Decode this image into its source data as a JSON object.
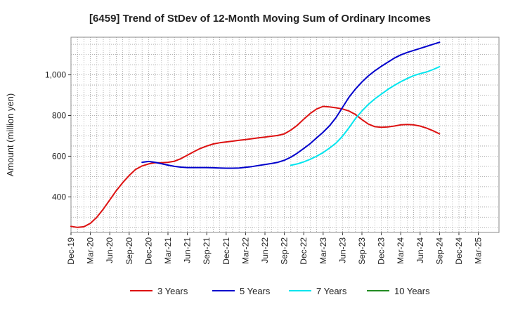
{
  "chart_data": {
    "type": "line",
    "title": "[6459]  Trend of StDev of 12-Month Moving Sum of Ordinary Incomes",
    "ylabel": "Amount (million yen)",
    "xlabel": "",
    "x_ticks": [
      "Dec-19",
      "Mar-20",
      "Jun-20",
      "Sep-20",
      "Dec-20",
      "Mar-21",
      "Jun-21",
      "Sep-21",
      "Dec-21",
      "Mar-22",
      "Jun-22",
      "Sep-22",
      "Dec-22",
      "Mar-23",
      "Jun-23",
      "Sep-23",
      "Dec-23",
      "Mar-24",
      "Jun-24",
      "Sep-24",
      "Dec-24",
      "Mar-25"
    ],
    "y_ticks": [
      400,
      600,
      800,
      1000
    ],
    "y_tick_labels": [
      "400",
      "600",
      "800",
      "1,000"
    ],
    "ylim": [
      225,
      1185
    ],
    "grid": true,
    "legend_position": "bottom",
    "series": [
      {
        "name": "3 Years",
        "color": "#dd1111",
        "values": [
          255,
          250,
          253,
          270,
          300,
          340,
          385,
          430,
          470,
          505,
          535,
          552,
          562,
          568,
          568,
          570,
          575,
          588,
          605,
          622,
          638,
          650,
          660,
          666,
          670,
          674,
          678,
          682,
          686,
          690,
          694,
          698,
          702,
          710,
          728,
          752,
          782,
          810,
          832,
          845,
          842,
          838,
          832,
          822,
          805,
          780,
          758,
          745,
          742,
          744,
          748,
          754,
          756,
          754,
          748,
          738,
          725,
          710
        ]
      },
      {
        "name": "5 Years",
        "color": "#0000cc",
        "values": [
          null,
          null,
          null,
          null,
          null,
          null,
          null,
          null,
          null,
          null,
          null,
          570,
          574,
          570,
          563,
          556,
          550,
          546,
          544,
          544,
          544,
          544,
          543,
          542,
          541,
          541,
          542,
          545,
          549,
          554,
          559,
          564,
          570,
          580,
          595,
          615,
          638,
          662,
          690,
          718,
          750,
          790,
          840,
          890,
          930,
          965,
          995,
          1020,
          1042,
          1062,
          1082,
          1098,
          1110,
          1120,
          1130,
          1140,
          1150,
          1160
        ]
      },
      {
        "name": "7 Years",
        "color": "#00e5ee",
        "values": [
          null,
          null,
          null,
          null,
          null,
          null,
          null,
          null,
          null,
          null,
          null,
          null,
          null,
          null,
          null,
          null,
          null,
          null,
          null,
          null,
          null,
          null,
          null,
          null,
          null,
          null,
          null,
          null,
          null,
          null,
          null,
          null,
          null,
          null,
          555,
          562,
          572,
          585,
          600,
          618,
          640,
          665,
          698,
          740,
          785,
          822,
          855,
          882,
          905,
          928,
          948,
          966,
          982,
          996,
          1006,
          1014,
          1026,
          1040
        ]
      },
      {
        "name": "10 Years",
        "color": "#228b22",
        "values": []
      }
    ]
  }
}
